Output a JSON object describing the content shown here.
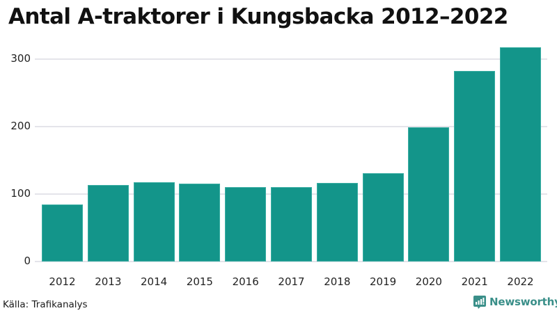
{
  "title": "Antal A-traktorer i Kungsbacka 2012–2022",
  "source": "Källa: Trafikanalys",
  "brand": {
    "name": "Newsworthy",
    "icon": "newsworthy-logo-icon",
    "color": "#3a8f89"
  },
  "colors": {
    "bar": "#13958a",
    "gridline": "#e4e4ea"
  },
  "y_axis": {
    "ticks": [
      {
        "label": "0",
        "value": 0
      },
      {
        "label": "100",
        "value": 100
      },
      {
        "label": "200",
        "value": 200
      },
      {
        "label": "300",
        "value": 300
      }
    ]
  },
  "chart_data": {
    "type": "bar",
    "title": "Antal A-traktorer i Kungsbacka 2012–2022",
    "xlabel": "",
    "ylabel": "",
    "categories": [
      "2012",
      "2013",
      "2014",
      "2015",
      "2016",
      "2017",
      "2018",
      "2019",
      "2020",
      "2021",
      "2022"
    ],
    "values": [
      85,
      113,
      118,
      115,
      110,
      110,
      116,
      131,
      199,
      282,
      318
    ],
    "ylim": [
      0,
      330
    ],
    "yticks": [
      0,
      100,
      200,
      300
    ],
    "grid": true,
    "legend": null,
    "source": "Källa: Trafikanalys"
  }
}
